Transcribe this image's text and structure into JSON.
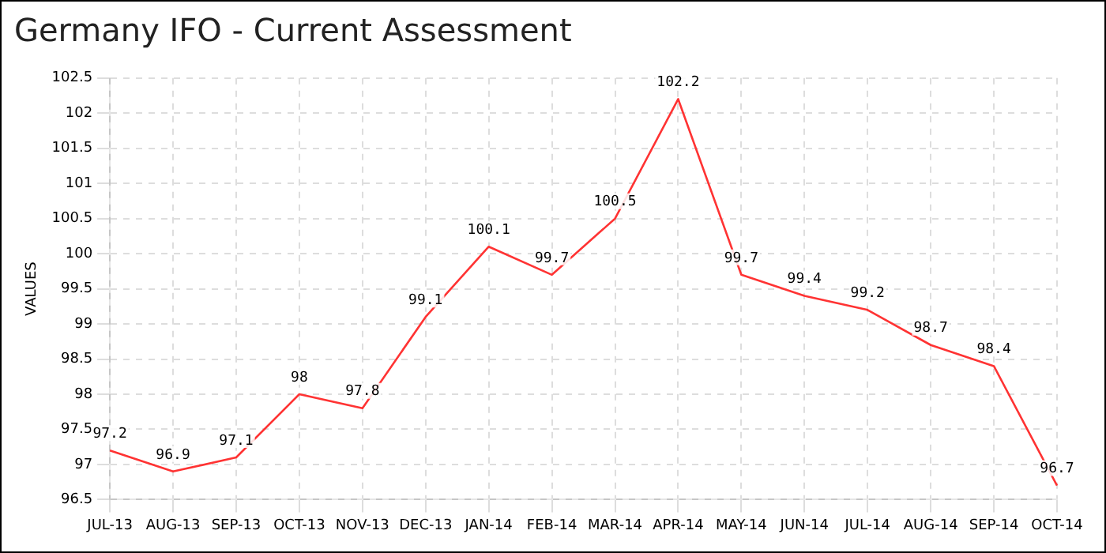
{
  "chart_data": {
    "type": "line",
    "title": "Germany IFO - Current Assessment",
    "ylabel": "VALUES",
    "categories": [
      "JUL-13",
      "AUG-13",
      "SEP-13",
      "OCT-13",
      "NOV-13",
      "DEC-13",
      "JAN-14",
      "FEB-14",
      "MAR-14",
      "APR-14",
      "MAY-14",
      "JUN-14",
      "JUL-14",
      "AUG-14",
      "SEP-14",
      "OCT-14"
    ],
    "series": [
      {
        "color": "#ff3333",
        "values": [
          97.2,
          96.9,
          97.1,
          98,
          97.8,
          99.1,
          100.1,
          99.7,
          100.5,
          102.2,
          99.7,
          99.4,
          99.2,
          98.7,
          98.4,
          96.7
        ]
      }
    ],
    "ylim": [
      96.5,
      102.5
    ],
    "yticks": [
      96.5,
      97,
      97.5,
      98,
      98.5,
      99,
      99.5,
      100,
      100.5,
      101,
      101.5,
      102,
      102.5
    ],
    "grid": true,
    "line_style": "solid",
    "data_labels": true,
    "legend": false,
    "marker": "none"
  }
}
